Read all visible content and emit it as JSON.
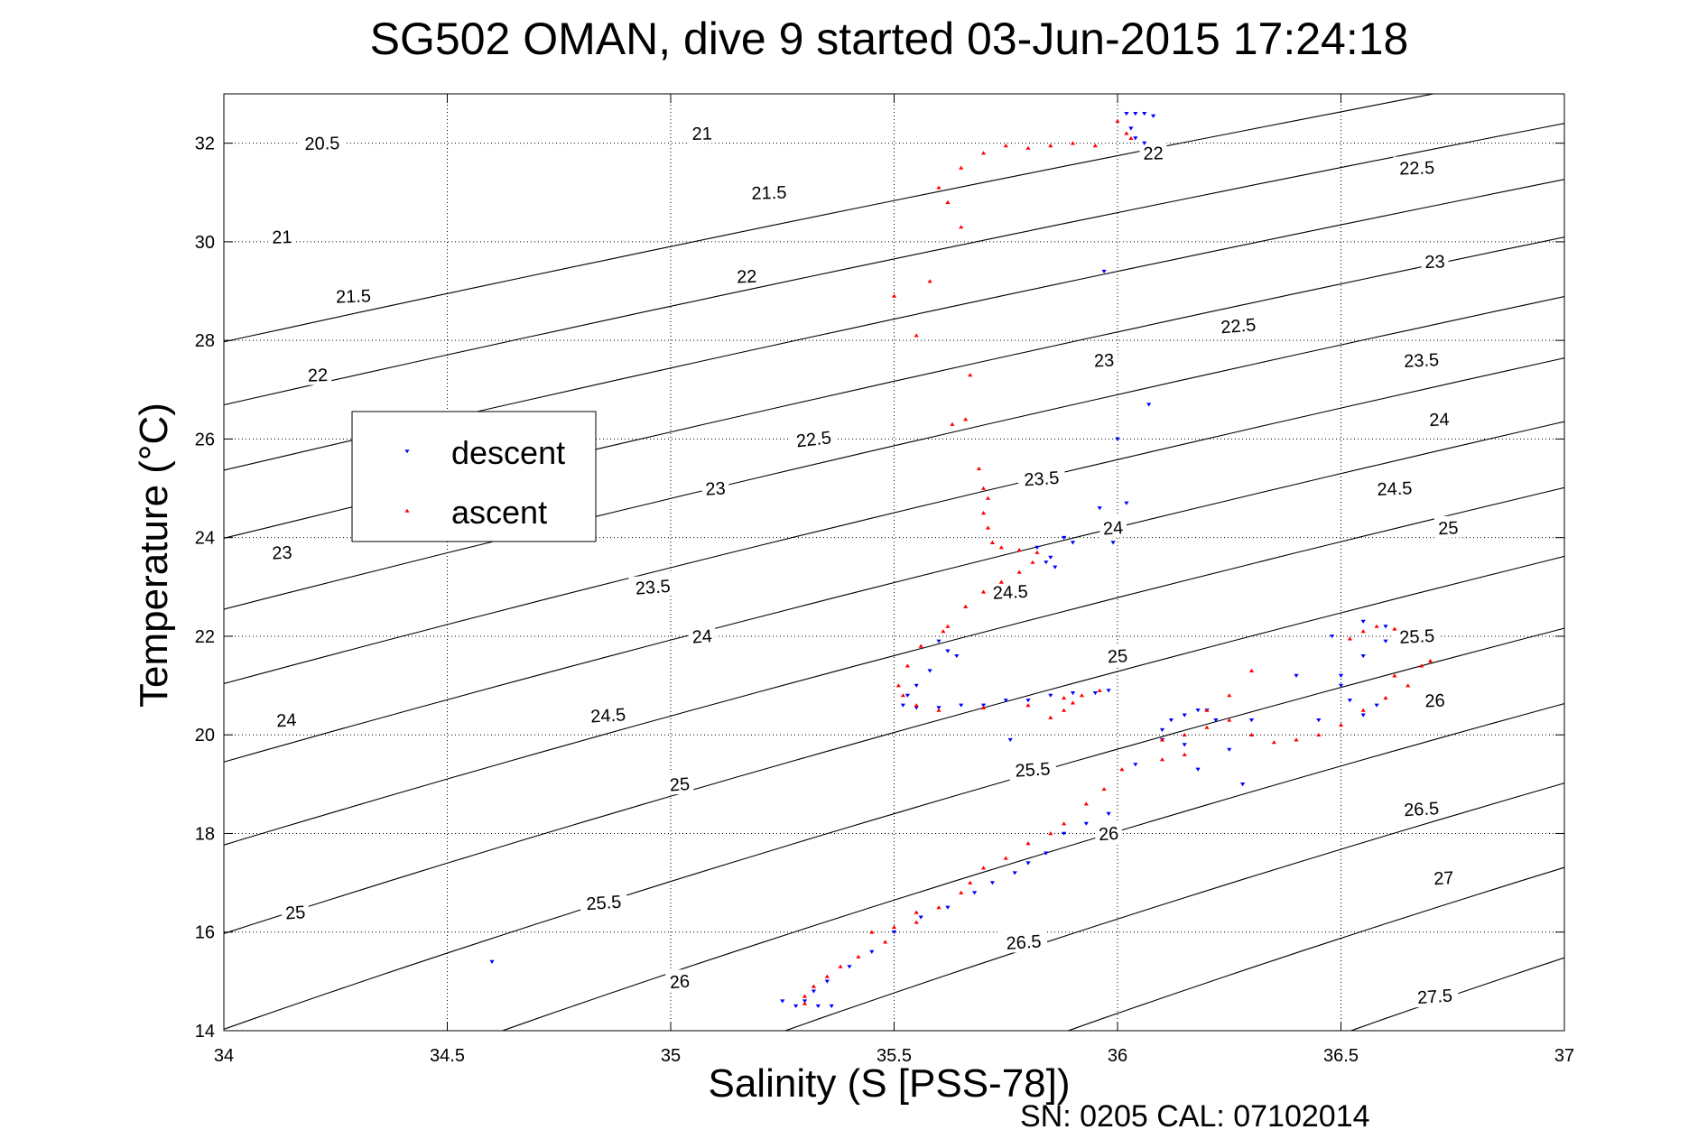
{
  "chart_data": {
    "type": "scatter",
    "title": "SG502 OMAN, dive 9 started 03-Jun-2015 17:24:18",
    "xlabel": "Salinity (S [PSS-78])",
    "ylabel": "Temperature (°C)",
    "xlim": [
      34,
      37
    ],
    "ylim": [
      14,
      33
    ],
    "xticks": [
      "34",
      "34.5",
      "35",
      "35.5",
      "36",
      "36.5",
      "37"
    ],
    "yticks": [
      "14",
      "16",
      "18",
      "20",
      "22",
      "24",
      "26",
      "28",
      "30",
      "32"
    ],
    "grid": true,
    "legend_position": "left-middle",
    "footer": "SN: 0205  CAL: 07102014",
    "contours": [
      {
        "label": "20.5",
        "labels_at": [
          [
            34.22,
            32.0
          ]
        ]
      },
      {
        "label": "21",
        "labels_at": [
          [
            34.13,
            30.1
          ],
          [
            35.07,
            32.2
          ]
        ]
      },
      {
        "label": "21.5",
        "labels_at": [
          [
            34.29,
            28.9
          ],
          [
            35.22,
            31.0
          ]
        ]
      },
      {
        "label": "22",
        "labels_at": [
          [
            34.21,
            27.3
          ],
          [
            35.17,
            29.3
          ],
          [
            36.08,
            31.8
          ]
        ]
      },
      {
        "label": "22.5",
        "labels_at": [
          [
            35.32,
            26.0
          ],
          [
            36.27,
            28.3
          ],
          [
            36.67,
            31.5
          ]
        ]
      },
      {
        "label": "23",
        "labels_at": [
          [
            34.13,
            23.7
          ],
          [
            35.1,
            25.0
          ],
          [
            35.97,
            27.6
          ],
          [
            36.71,
            29.6
          ]
        ]
      },
      {
        "label": "23.5",
        "labels_at": [
          [
            34.96,
            23.0
          ],
          [
            35.83,
            25.2
          ],
          [
            36.68,
            27.6
          ]
        ]
      },
      {
        "label": "24",
        "labels_at": [
          [
            34.14,
            20.3
          ],
          [
            35.07,
            22.0
          ],
          [
            35.99,
            24.2
          ],
          [
            36.72,
            26.4
          ]
        ]
      },
      {
        "label": "24.5",
        "labels_at": [
          [
            34.86,
            20.4
          ],
          [
            35.76,
            22.9
          ],
          [
            36.62,
            25.0
          ]
        ]
      },
      {
        "label": "25",
        "labels_at": [
          [
            34.16,
            16.4
          ],
          [
            35.02,
            19.0
          ],
          [
            36.0,
            21.6
          ],
          [
            36.74,
            24.2
          ]
        ]
      },
      {
        "label": "25.5",
        "labels_at": [
          [
            34.85,
            16.6
          ],
          [
            35.81,
            19.3
          ],
          [
            36.67,
            22.0
          ]
        ]
      },
      {
        "label": "26",
        "labels_at": [
          [
            35.02,
            15.0
          ],
          [
            35.98,
            18.0
          ],
          [
            36.71,
            20.7
          ]
        ]
      },
      {
        "label": "26.5",
        "labels_at": [
          [
            35.79,
            15.8
          ],
          [
            36.68,
            18.5
          ]
        ]
      },
      {
        "label": "27",
        "labels_at": [
          [
            36.73,
            17.1
          ]
        ]
      },
      {
        "label": "27.5",
        "labels_at": [
          [
            36.71,
            14.7
          ]
        ]
      }
    ],
    "series": [
      {
        "name": "descent",
        "color": "#0000ff",
        "marker": "triangle-down",
        "points": [
          [
            36.02,
            32.6
          ],
          [
            36.04,
            32.6
          ],
          [
            36.06,
            32.6
          ],
          [
            36.08,
            32.55
          ],
          [
            36.03,
            32.3
          ],
          [
            36.04,
            32.1
          ],
          [
            36.06,
            32.0
          ],
          [
            35.97,
            29.4
          ],
          [
            36.07,
            26.7
          ],
          [
            36.0,
            26.0
          ],
          [
            35.96,
            24.6
          ],
          [
            36.02,
            24.7
          ],
          [
            35.99,
            23.9
          ],
          [
            35.88,
            24.0
          ],
          [
            35.9,
            23.9
          ],
          [
            35.85,
            23.6
          ],
          [
            35.82,
            23.8
          ],
          [
            35.84,
            23.5
          ],
          [
            35.86,
            23.4
          ],
          [
            35.6,
            21.9
          ],
          [
            35.62,
            21.7
          ],
          [
            35.64,
            21.6
          ],
          [
            35.58,
            21.3
          ],
          [
            35.55,
            21.0
          ],
          [
            35.53,
            20.8
          ],
          [
            35.52,
            20.6
          ],
          [
            35.55,
            20.55
          ],
          [
            35.6,
            20.55
          ],
          [
            35.65,
            20.6
          ],
          [
            35.7,
            20.6
          ],
          [
            35.75,
            20.7
          ],
          [
            35.8,
            20.7
          ],
          [
            35.85,
            20.8
          ],
          [
            35.9,
            20.85
          ],
          [
            35.95,
            20.85
          ],
          [
            35.98,
            20.9
          ],
          [
            35.76,
            19.9
          ],
          [
            36.1,
            20.1
          ],
          [
            36.12,
            20.3
          ],
          [
            36.15,
            20.4
          ],
          [
            36.18,
            20.5
          ],
          [
            36.2,
            20.5
          ],
          [
            36.22,
            20.3
          ],
          [
            36.1,
            19.9
          ],
          [
            36.15,
            19.8
          ],
          [
            36.25,
            19.7
          ],
          [
            36.3,
            20.3
          ],
          [
            36.18,
            19.3
          ],
          [
            36.28,
            19.0
          ],
          [
            36.4,
            21.2
          ],
          [
            36.5,
            21.0
          ],
          [
            36.55,
            21.6
          ],
          [
            36.52,
            20.7
          ],
          [
            36.58,
            20.6
          ],
          [
            36.55,
            20.4
          ],
          [
            36.6,
            21.9
          ],
          [
            36.5,
            21.2
          ],
          [
            36.45,
            20.3
          ],
          [
            36.55,
            22.3
          ],
          [
            36.6,
            22.2
          ],
          [
            36.48,
            22.0
          ],
          [
            36.04,
            19.4
          ],
          [
            35.98,
            18.4
          ],
          [
            35.93,
            18.2
          ],
          [
            35.88,
            18.0
          ],
          [
            35.84,
            17.6
          ],
          [
            35.8,
            17.4
          ],
          [
            35.77,
            17.2
          ],
          [
            35.72,
            17.0
          ],
          [
            35.68,
            16.8
          ],
          [
            35.62,
            16.5
          ],
          [
            35.56,
            16.3
          ],
          [
            35.5,
            16.0
          ],
          [
            35.45,
            15.6
          ],
          [
            35.4,
            15.3
          ],
          [
            35.35,
            15.0
          ],
          [
            35.32,
            14.8
          ],
          [
            35.3,
            14.6
          ],
          [
            35.28,
            14.5
          ],
          [
            35.33,
            14.5
          ],
          [
            35.36,
            14.5
          ],
          [
            35.25,
            14.6
          ],
          [
            34.6,
            15.4
          ]
        ]
      },
      {
        "name": "ascent",
        "color": "#ff0000",
        "marker": "triangle-up",
        "points": [
          [
            36.0,
            32.45
          ],
          [
            36.02,
            32.2
          ],
          [
            36.03,
            32.1
          ],
          [
            35.95,
            31.95
          ],
          [
            35.9,
            32.0
          ],
          [
            35.85,
            31.95
          ],
          [
            35.8,
            31.9
          ],
          [
            35.75,
            31.95
          ],
          [
            35.7,
            31.8
          ],
          [
            35.65,
            31.5
          ],
          [
            35.6,
            31.1
          ],
          [
            35.62,
            30.8
          ],
          [
            35.65,
            30.3
          ],
          [
            35.58,
            29.2
          ],
          [
            35.5,
            28.9
          ],
          [
            35.55,
            28.1
          ],
          [
            35.67,
            27.3
          ],
          [
            35.63,
            26.3
          ],
          [
            35.66,
            26.4
          ],
          [
            35.69,
            25.4
          ],
          [
            35.7,
            25.0
          ],
          [
            35.71,
            24.8
          ],
          [
            35.7,
            24.5
          ],
          [
            35.71,
            24.2
          ],
          [
            35.72,
            23.9
          ],
          [
            35.74,
            23.8
          ],
          [
            35.78,
            23.75
          ],
          [
            35.82,
            23.7
          ],
          [
            35.81,
            23.5
          ],
          [
            35.78,
            23.3
          ],
          [
            35.74,
            23.1
          ],
          [
            35.7,
            22.9
          ],
          [
            35.66,
            22.6
          ],
          [
            35.62,
            22.2
          ],
          [
            35.61,
            22.1
          ],
          [
            35.56,
            21.8
          ],
          [
            35.53,
            21.4
          ],
          [
            35.51,
            21.0
          ],
          [
            35.52,
            20.8
          ],
          [
            35.55,
            20.6
          ],
          [
            35.6,
            20.5
          ],
          [
            35.7,
            20.55
          ],
          [
            35.8,
            20.6
          ],
          [
            35.88,
            20.75
          ],
          [
            35.92,
            20.8
          ],
          [
            35.96,
            20.9
          ],
          [
            35.88,
            20.5
          ],
          [
            35.9,
            20.65
          ],
          [
            35.85,
            20.35
          ],
          [
            36.1,
            19.9
          ],
          [
            36.15,
            20.0
          ],
          [
            36.2,
            20.15
          ],
          [
            36.25,
            20.3
          ],
          [
            36.3,
            20.0
          ],
          [
            36.35,
            19.85
          ],
          [
            36.4,
            19.9
          ],
          [
            36.45,
            20.0
          ],
          [
            36.5,
            20.2
          ],
          [
            36.55,
            20.5
          ],
          [
            36.6,
            20.75
          ],
          [
            36.65,
            21.0
          ],
          [
            36.7,
            21.5
          ],
          [
            36.68,
            21.4
          ],
          [
            36.62,
            21.2
          ],
          [
            36.3,
            21.3
          ],
          [
            36.25,
            20.8
          ],
          [
            36.2,
            20.5
          ],
          [
            36.15,
            19.6
          ],
          [
            36.1,
            19.5
          ],
          [
            36.55,
            22.1
          ],
          [
            36.58,
            22.2
          ],
          [
            36.62,
            22.15
          ],
          [
            36.52,
            21.95
          ],
          [
            36.01,
            19.3
          ],
          [
            35.97,
            18.9
          ],
          [
            35.93,
            18.6
          ],
          [
            35.88,
            18.2
          ],
          [
            35.85,
            18.0
          ],
          [
            35.8,
            17.8
          ],
          [
            35.75,
            17.5
          ],
          [
            35.7,
            17.3
          ],
          [
            35.65,
            16.8
          ],
          [
            35.6,
            16.5
          ],
          [
            35.55,
            16.2
          ],
          [
            35.48,
            15.8
          ],
          [
            35.42,
            15.5
          ],
          [
            35.38,
            15.3
          ],
          [
            35.35,
            15.1
          ],
          [
            35.32,
            14.9
          ],
          [
            35.3,
            14.7
          ],
          [
            35.3,
            14.55
          ],
          [
            35.5,
            16.1
          ],
          [
            35.45,
            16.0
          ],
          [
            35.55,
            16.4
          ],
          [
            35.67,
            17.0
          ]
        ]
      }
    ]
  }
}
